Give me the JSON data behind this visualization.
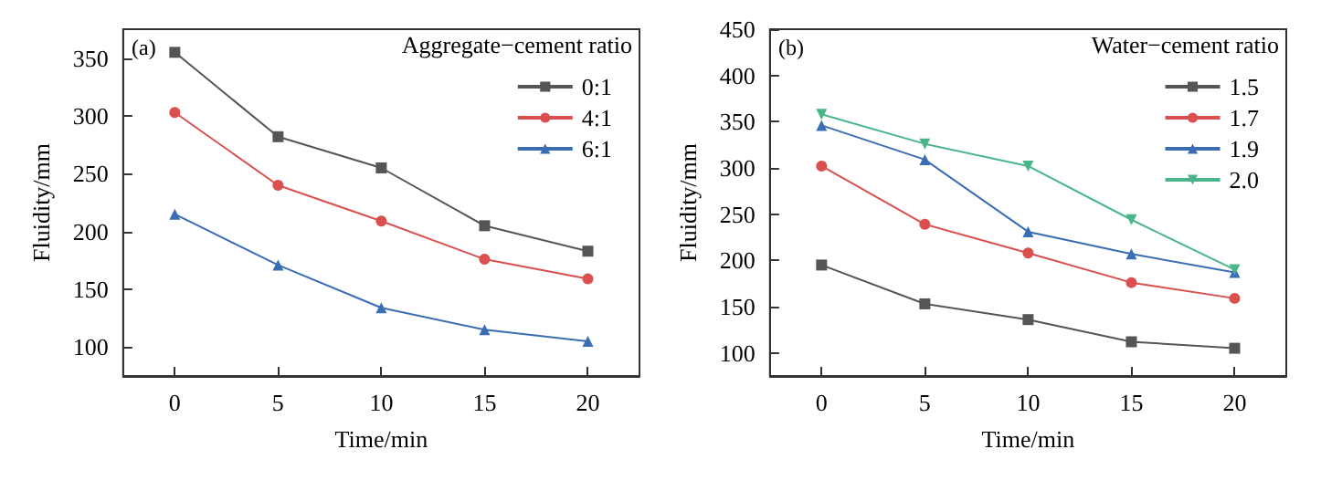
{
  "chart_data": [
    {
      "type": "line",
      "xlabel": "Time/min",
      "ylabel": "Fluidity/mm",
      "legend_title": "Aggregate−cement ratio",
      "annotations": [
        "(a)"
      ],
      "x": [
        0,
        5,
        10,
        15,
        20
      ],
      "xlim": [
        -2.5,
        22.5
      ],
      "xticks": [
        0,
        5,
        10,
        15,
        20
      ],
      "ylim": [
        75,
        375
      ],
      "yticks": [
        100,
        150,
        200,
        250,
        300,
        350
      ],
      "grid": false,
      "legend": "top right",
      "line_style": "solid",
      "series": [
        {
          "name": "0:1",
          "color": "#555555",
          "marker": "square",
          "values": [
            355,
            282,
            255,
            205,
            183
          ]
        },
        {
          "name": "4:1",
          "color": "#d9504f",
          "marker": "circle",
          "values": [
            303,
            240,
            209,
            176,
            159
          ]
        },
        {
          "name": "6:1",
          "color": "#3a6db4",
          "marker": "triangle",
          "values": [
            215,
            171,
            134,
            115,
            105
          ]
        }
      ]
    },
    {
      "type": "line",
      "xlabel": "Time/min",
      "ylabel": "Fluidity/mm",
      "legend_title": "Water−cement ratio",
      "annotations": [
        "(b)"
      ],
      "x": [
        0,
        5,
        10,
        15,
        20
      ],
      "xlim": [
        -2.5,
        22.5
      ],
      "xticks": [
        0,
        5,
        10,
        15,
        20
      ],
      "ylim": [
        75,
        450
      ],
      "yticks": [
        100,
        150,
        200,
        250,
        300,
        350,
        400,
        450
      ],
      "grid": false,
      "legend": "top right",
      "line_style": "solid",
      "series": [
        {
          "name": "1.5",
          "color": "#555555",
          "marker": "square",
          "values": [
            195,
            153,
            136,
            112,
            105
          ]
        },
        {
          "name": "1.7",
          "color": "#d9504f",
          "marker": "circle",
          "values": [
            302,
            239,
            208,
            176,
            159
          ]
        },
        {
          "name": "1.9",
          "color": "#3a6db4",
          "marker": "triangle",
          "values": [
            346,
            309,
            231,
            207,
            187
          ]
        },
        {
          "name": "2.0",
          "color": "#4bb58a",
          "marker": "triangle-down",
          "values": [
            358,
            326,
            302,
            244,
            190
          ]
        }
      ]
    }
  ]
}
